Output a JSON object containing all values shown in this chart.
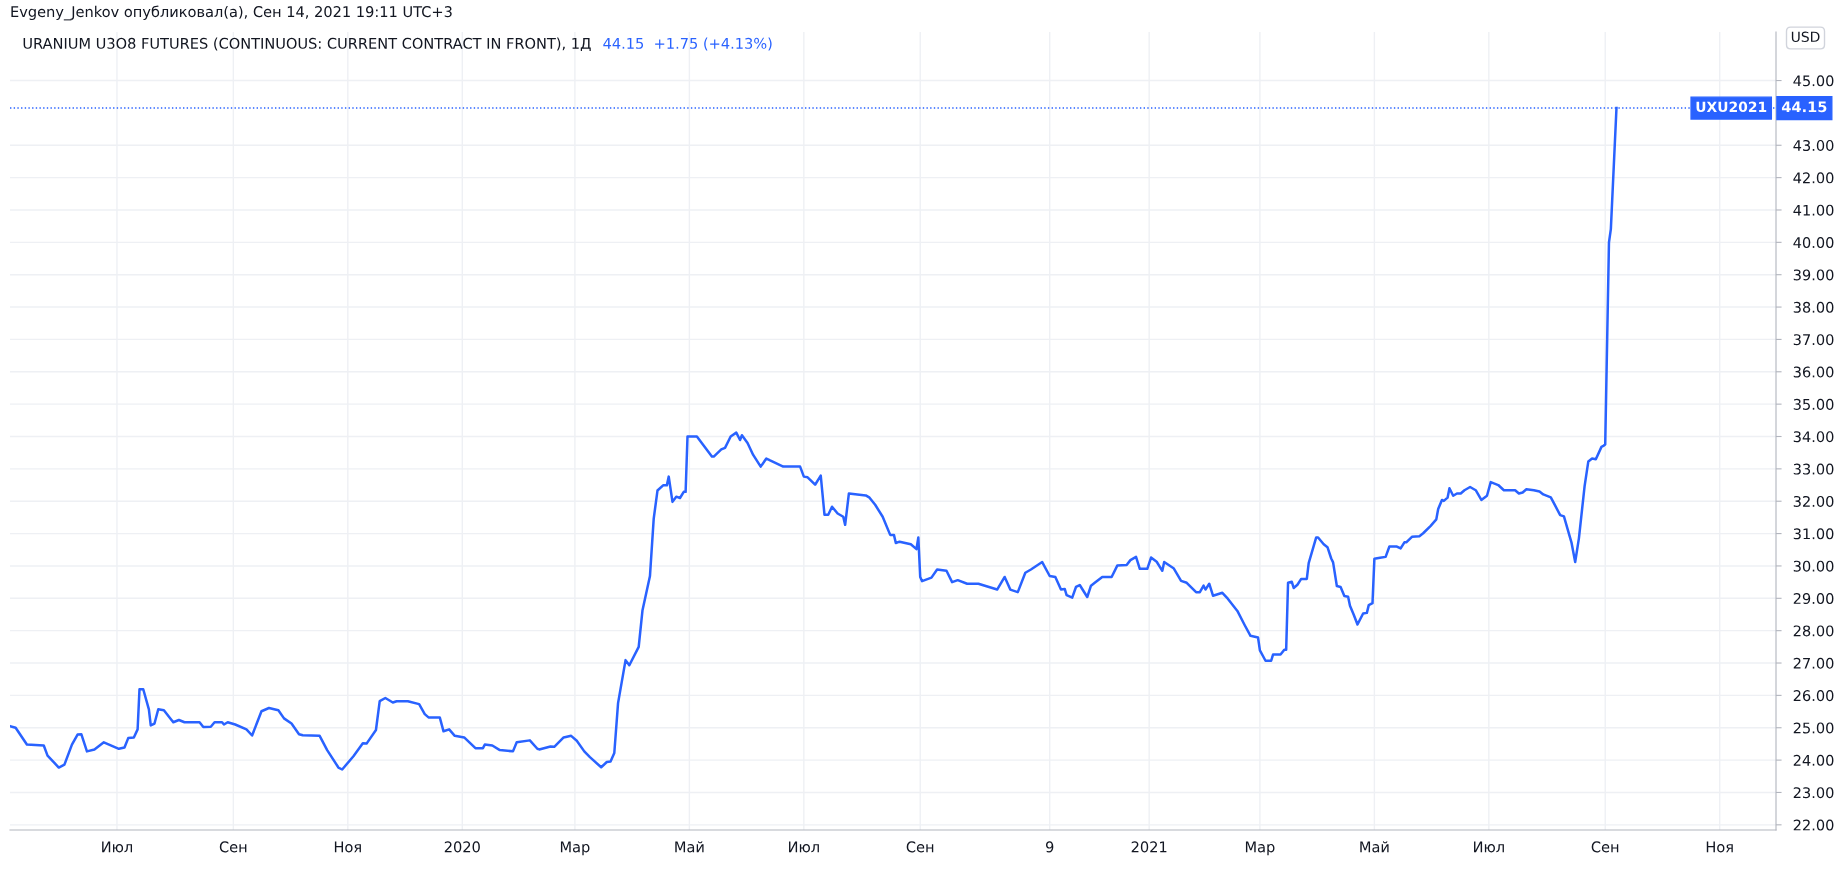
{
  "chart_data": {
    "type": "line",
    "title": "URANIUM U3O8 FUTURES (CONTINUOUS: CURRENT CONTRACT IN FRONT), 1Д",
    "subtitle": "44.15  +1.75 (+4.13%)",
    "ylabel": "USD",
    "annotations": [
      "Evgeny_Jenkov опубликовал(а), Сен 14, 2021 19:11 UTC+3",
      "44.15"
    ],
    "x": [
      "2019-05-05",
      "2019-05-08",
      "2019-05-14",
      "2019-05-23",
      "2019-05-25",
      "2019-05-31",
      "2019-06-03",
      "2019-06-07",
      "2019-06-10",
      "2019-06-12",
      "2019-06-15",
      "2019-06-19",
      "2019-06-24",
      "2019-07-02",
      "2019-07-05",
      "2019-07-07",
      "2019-07-10",
      "2019-07-12",
      "2019-07-13",
      "2019-07-15",
      "2019-07-18",
      "2019-07-19",
      "2019-07-21",
      "2019-07-23",
      "2019-07-26",
      "2019-07-31",
      "2019-08-03",
      "2019-08-06",
      "2019-08-14",
      "2019-08-16",
      "2019-08-20",
      "2019-08-22",
      "2019-08-26",
      "2019-08-27",
      "2019-08-29",
      "2019-09-02",
      "2019-09-08",
      "2019-09-11",
      "2019-09-16",
      "2019-09-20",
      "2019-09-25",
      "2019-09-28",
      "2019-10-02",
      "2019-10-06",
      "2019-10-08",
      "2019-10-17",
      "2019-10-21",
      "2019-10-27",
      "2019-10-29",
      "2019-11-04",
      "2019-11-09",
      "2019-11-11",
      "2019-11-16",
      "2019-11-18",
      "2019-11-21",
      "2019-11-25",
      "2019-11-27",
      "2019-12-03",
      "2019-12-09",
      "2019-12-12",
      "2019-12-14",
      "2019-12-20",
      "2019-12-22",
      "2019-12-25",
      "2019-12-28",
      "2020-01-02",
      "2020-01-08",
      "2020-01-12",
      "2020-01-13",
      "2020-01-17",
      "2020-01-21",
      "2020-01-28",
      "2020-01-30",
      "2020-02-06",
      "2020-02-10",
      "2020-02-11",
      "2020-02-17",
      "2020-02-19",
      "2020-02-24",
      "2020-02-28",
      "2020-03-02",
      "2020-03-06",
      "2020-03-09",
      "2020-03-15",
      "2020-03-18",
      "2020-03-20",
      "2020-03-22",
      "2020-03-24",
      "2020-03-28",
      "2020-03-30",
      "2020-04-04",
      "2020-04-06",
      "2020-04-10",
      "2020-04-12",
      "2020-04-14",
      "2020-04-17",
      "2020-04-19",
      "2020-04-20",
      "2020-04-22",
      "2020-04-24",
      "2020-04-26",
      "2020-04-28",
      "2020-04-29",
      "2020-04-30",
      "2020-05-05",
      "2020-05-09",
      "2020-05-13",
      "2020-05-14",
      "2020-05-18",
      "2020-05-20",
      "2020-05-23",
      "2020-05-26",
      "2020-05-28",
      "2020-05-29",
      "2020-06-01",
      "2020-06-04",
      "2020-06-08",
      "2020-06-11",
      "2020-06-13",
      "2020-06-20",
      "2020-06-29",
      "2020-07-01",
      "2020-07-03",
      "2020-07-07",
      "2020-07-10",
      "2020-07-12",
      "2020-07-14",
      "2020-07-16",
      "2020-07-19",
      "2020-07-22",
      "2020-07-23",
      "2020-07-25",
      "2020-08-03",
      "2020-08-05",
      "2020-08-08",
      "2020-08-12",
      "2020-08-16",
      "2020-08-18",
      "2020-08-19",
      "2020-08-21",
      "2020-08-27",
      "2020-08-30",
      "2020-08-31",
      "2020-09-01",
      "2020-09-02",
      "2020-09-07",
      "2020-09-10",
      "2020-09-15",
      "2020-09-18",
      "2020-09-21",
      "2020-09-26",
      "2020-10-02",
      "2020-10-12",
      "2020-10-16",
      "2020-10-19",
      "2020-10-23",
      "2020-10-27",
      "2020-10-30",
      "2020-11-05",
      "2020-11-09",
      "2020-11-12",
      "2020-11-15",
      "2020-11-17",
      "2020-11-18",
      "2020-11-21",
      "2020-11-23",
      "2020-11-25",
      "2020-11-29",
      "2020-12-01",
      "2020-12-03",
      "2020-12-07",
      "2020-12-12",
      "2020-12-15",
      "2020-12-20",
      "2020-12-22",
      "2020-12-25",
      "2020-12-27",
      "2020-12-31",
      "2021-01-02",
      "2021-01-05",
      "2021-01-08",
      "2021-01-09",
      "2021-01-14",
      "2021-01-18",
      "2021-01-21",
      "2021-01-26",
      "2021-01-28",
      "2021-01-30",
      "2021-01-31",
      "2021-02-02",
      "2021-02-04",
      "2021-02-09",
      "2021-02-12",
      "2021-02-17",
      "2021-02-21",
      "2021-02-24",
      "2021-02-28",
      "2021-03-01",
      "2021-03-04",
      "2021-03-07",
      "2021-03-08",
      "2021-03-12",
      "2021-03-14",
      "2021-03-15",
      "2021-03-16",
      "2021-03-18",
      "2021-03-19",
      "2021-03-21",
      "2021-03-23",
      "2021-03-26",
      "2021-03-27",
      "2021-03-31",
      "2021-04-01",
      "2021-04-04",
      "2021-04-06",
      "2021-04-08",
      "2021-04-09",
      "2021-04-11",
      "2021-04-13",
      "2021-04-15",
      "2021-04-17",
      "2021-04-18",
      "2021-04-20",
      "2021-04-22",
      "2021-04-25",
      "2021-04-27",
      "2021-04-28",
      "2021-04-30",
      "2021-05-01",
      "2021-05-04",
      "2021-05-07",
      "2021-05-09",
      "2021-05-13",
      "2021-05-15",
      "2021-05-17",
      "2021-05-18",
      "2021-05-21",
      "2021-05-25",
      "2021-05-27",
      "2021-05-31",
      "2021-06-03",
      "2021-06-04",
      "2021-06-06",
      "2021-06-07",
      "2021-06-09",
      "2021-06-10",
      "2021-06-12",
      "2021-06-14",
      "2021-06-16",
      "2021-06-18",
      "2021-06-21",
      "2021-06-24",
      "2021-06-27",
      "2021-06-30",
      "2021-07-02",
      "2021-07-06",
      "2021-07-09",
      "2021-07-15",
      "2021-07-17",
      "2021-07-19",
      "2021-07-21",
      "2021-07-25",
      "2021-07-28",
      "2021-07-30",
      "2021-08-03",
      "2021-08-05",
      "2021-08-08",
      "2021-08-10",
      "2021-08-14",
      "2021-08-16",
      "2021-08-18",
      "2021-08-21",
      "2021-08-23",
      "2021-08-25",
      "2021-08-27",
      "2021-08-30",
      "2021-08-31",
      "2021-09-01",
      "2021-09-03",
      "2021-09-04",
      "2021-09-07"
    ],
    "series": [
      {
        "color": "#2962ff",
        "values": [
          25.05,
          25.0,
          24.48,
          24.45,
          24.14,
          23.77,
          23.86,
          24.48,
          24.79,
          24.8,
          24.27,
          24.33,
          24.55,
          24.35,
          24.39,
          24.68,
          24.7,
          24.95,
          26.19,
          26.19,
          25.57,
          25.07,
          25.13,
          25.57,
          25.54,
          25.17,
          25.24,
          25.17,
          25.17,
          25.02,
          25.03,
          25.17,
          25.17,
          25.1,
          25.17,
          25.1,
          24.95,
          24.76,
          25.51,
          25.61,
          25.54,
          25.29,
          25.13,
          24.8,
          24.77,
          24.75,
          24.31,
          23.77,
          23.71,
          24.12,
          24.52,
          24.51,
          24.93,
          25.82,
          25.92,
          25.78,
          25.82,
          25.82,
          25.73,
          25.42,
          25.32,
          25.32,
          24.89,
          24.95,
          24.75,
          24.7,
          24.37,
          24.37,
          24.48,
          24.45,
          24.31,
          24.27,
          24.55,
          24.61,
          24.35,
          24.33,
          24.42,
          24.41,
          24.7,
          24.75,
          24.6,
          24.27,
          24.09,
          23.78,
          23.94,
          23.96,
          24.22,
          25.76,
          27.09,
          26.93,
          27.5,
          28.62,
          29.69,
          31.46,
          32.33,
          32.49,
          32.49,
          32.76,
          31.98,
          32.14,
          32.1,
          32.29,
          32.29,
          34.0,
          34.0,
          33.69,
          33.38,
          33.38,
          33.6,
          33.65,
          34.0,
          34.12,
          33.89,
          34.04,
          33.8,
          33.43,
          33.07,
          33.32,
          33.26,
          33.07,
          33.07,
          32.76,
          32.74,
          32.51,
          32.79,
          31.58,
          31.58,
          31.83,
          31.62,
          31.52,
          31.27,
          32.24,
          32.18,
          32.11,
          31.89,
          31.52,
          30.96,
          30.96,
          30.71,
          30.75,
          30.67,
          30.52,
          30.88,
          29.66,
          29.53,
          29.64,
          29.89,
          29.85,
          29.5,
          29.56,
          29.45,
          29.45,
          29.27,
          29.66,
          29.27,
          29.19,
          29.79,
          29.89,
          30.12,
          29.69,
          29.66,
          29.27,
          29.29,
          29.1,
          29.02,
          29.35,
          29.41,
          29.04,
          29.39,
          29.48,
          29.66,
          29.66,
          30.01,
          30.03,
          30.18,
          30.28,
          29.91,
          29.91,
          30.26,
          30.13,
          29.85,
          30.12,
          29.93,
          29.54,
          29.48,
          29.19,
          29.19,
          29.39,
          29.27,
          29.45,
          29.08,
          29.17,
          28.98,
          28.61,
          28.16,
          27.84,
          27.79,
          27.39,
          27.07,
          27.07,
          27.26,
          27.26,
          27.41,
          27.41,
          29.48,
          29.51,
          29.32,
          29.42,
          29.6,
          29.6,
          30.09,
          30.88,
          30.88,
          30.67,
          30.58,
          30.23,
          30.11,
          29.38,
          29.35,
          29.07,
          29.05,
          28.77,
          28.49,
          28.19,
          28.53,
          28.55,
          28.79,
          28.85,
          30.22,
          30.25,
          30.28,
          30.6,
          30.6,
          30.54,
          30.73,
          30.73,
          30.9,
          30.92,
          31.01,
          31.24,
          31.44,
          31.76,
          32.04,
          32.01,
          32.11,
          32.4,
          32.17,
          32.24,
          32.24,
          32.34,
          32.44,
          32.34,
          32.04,
          32.17,
          32.59,
          32.5,
          32.34,
          32.34,
          32.24,
          32.27,
          32.37,
          32.34,
          32.3,
          32.21,
          32.12,
          31.9,
          31.57,
          31.53,
          30.73,
          30.12,
          30.86,
          32.46,
          33.23,
          33.32,
          33.3,
          33.68,
          33.71,
          33.75,
          40.0,
          40.41,
          44.15
        ]
      }
    ],
    "xlim": [
      "2019-05-05",
      "2021-12-01"
    ],
    "xticks": [
      {
        "value": "2019-07-01",
        "label": "Июл"
      },
      {
        "value": "2019-09-01",
        "label": "Сен"
      },
      {
        "value": "2019-11-01",
        "label": "Ноя"
      },
      {
        "value": "2020-01-01",
        "label": "2020"
      },
      {
        "value": "2020-03-01",
        "label": "Мар"
      },
      {
        "value": "2020-05-01",
        "label": "Май"
      },
      {
        "value": "2020-07-01",
        "label": "Июл"
      },
      {
        "value": "2020-09-01",
        "label": "Сен"
      },
      {
        "value": "2020-11-09",
        "label": "9"
      },
      {
        "value": "2021-01-01",
        "label": "2021"
      },
      {
        "value": "2021-03-01",
        "label": "Мар"
      },
      {
        "value": "2021-05-01",
        "label": "Май"
      },
      {
        "value": "2021-07-01",
        "label": "Июл"
      },
      {
        "value": "2021-09-01",
        "label": "Сен"
      },
      {
        "value": "2021-11-01",
        "label": "Ноя"
      }
    ],
    "ylim": [
      21.84,
      46.5
    ],
    "yticks": [
      {
        "value": 22,
        "label": "22.00"
      },
      {
        "value": 23,
        "label": "23.00"
      },
      {
        "value": 24,
        "label": "24.00"
      },
      {
        "value": 25,
        "label": "25.00"
      },
      {
        "value": 26,
        "label": "26.00"
      },
      {
        "value": 27,
        "label": "27.00"
      },
      {
        "value": 28,
        "label": "28.00"
      },
      {
        "value": 29,
        "label": "29.00"
      },
      {
        "value": 30,
        "label": "30.00"
      },
      {
        "value": 31,
        "label": "31.00"
      },
      {
        "value": 32,
        "label": "32.00"
      },
      {
        "value": 33,
        "label": "33.00"
      },
      {
        "value": 34,
        "label": "34.00"
      },
      {
        "value": 35,
        "label": "35.00"
      },
      {
        "value": 36,
        "label": "36.00"
      },
      {
        "value": 37,
        "label": "37.00"
      },
      {
        "value": 38,
        "label": "38.00"
      },
      {
        "value": 39,
        "label": "39.00"
      },
      {
        "value": 40,
        "label": "40.00"
      },
      {
        "value": 41,
        "label": "41.00"
      },
      {
        "value": 42,
        "label": "42.00"
      },
      {
        "value": 43,
        "label": "43.00"
      },
      {
        "value": 45,
        "label": "45.00"
      }
    ],
    "ref_lines": [
      {
        "axis": "y",
        "value": 44.15,
        "label": "UXU2021",
        "color": "#2962ff",
        "line_style": "dotted"
      }
    ],
    "grid": true,
    "legend": false,
    "marker": "none",
    "line_style": "solid"
  }
}
